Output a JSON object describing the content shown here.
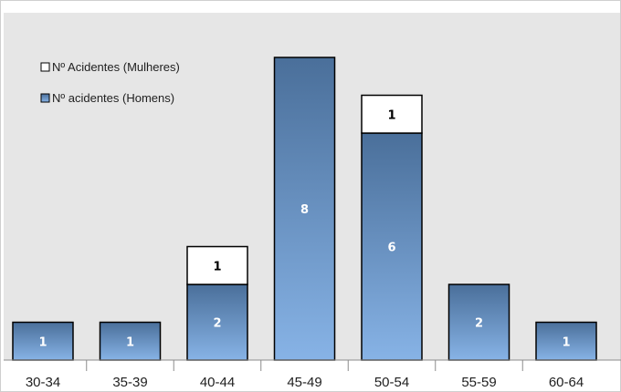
{
  "chart_data": {
    "type": "bar",
    "stacked": true,
    "categories": [
      "30-34",
      "35-39",
      "40-44",
      "45-49",
      "50-54",
      "55-59",
      "60-64"
    ],
    "series": [
      {
        "name": "Nº acidentes (Homens)",
        "values": [
          1,
          1,
          2,
          8,
          6,
          2,
          1
        ],
        "color": "#4a6f9a",
        "color_bottom": "#87b3e6",
        "label_color": "#ffffff"
      },
      {
        "name": "Nº Acidentes (Mulheres)",
        "values": [
          0,
          0,
          1,
          0,
          1,
          0,
          0
        ],
        "color": "#ffffff",
        "label_color": "#000000"
      }
    ],
    "ylim": [
      0,
      8
    ],
    "grid": false,
    "legend_position": "top-left",
    "plot_background": "#e6e6e6",
    "title": "",
    "xlabel": "",
    "ylabel": ""
  }
}
